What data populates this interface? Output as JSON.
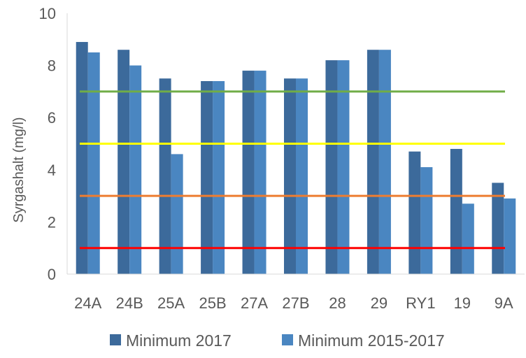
{
  "chart_data": {
    "type": "bar",
    "title": "",
    "xlabel": "",
    "ylabel": "Syrgashalt (mg/l)",
    "ylim": [
      0,
      10
    ],
    "yticks": [
      0,
      2,
      4,
      6,
      8,
      10
    ],
    "categories": [
      "24A",
      "24B",
      "25A",
      "25B",
      "27A",
      "27B",
      "28",
      "29",
      "RY1",
      "19",
      "9A"
    ],
    "series": [
      {
        "name": "Minimum 2017",
        "color": "#3c6a9b",
        "values": [
          8.9,
          8.6,
          7.5,
          7.4,
          7.8,
          7.5,
          8.2,
          8.6,
          4.7,
          4.8,
          3.5
        ]
      },
      {
        "name": "Minimum 2015-2017",
        "color": "#4a86c1",
        "values": [
          8.5,
          8.0,
          4.6,
          7.4,
          7.8,
          7.5,
          8.2,
          8.6,
          4.1,
          2.7,
          2.9
        ]
      }
    ],
    "reference_lines": [
      {
        "value": 7,
        "color": "#70ad47"
      },
      {
        "value": 5,
        "color": "#ffff00"
      },
      {
        "value": 3,
        "color": "#ed7d31"
      },
      {
        "value": 1,
        "color": "#ff0000"
      }
    ],
    "grid": false,
    "legend": "bottom"
  }
}
